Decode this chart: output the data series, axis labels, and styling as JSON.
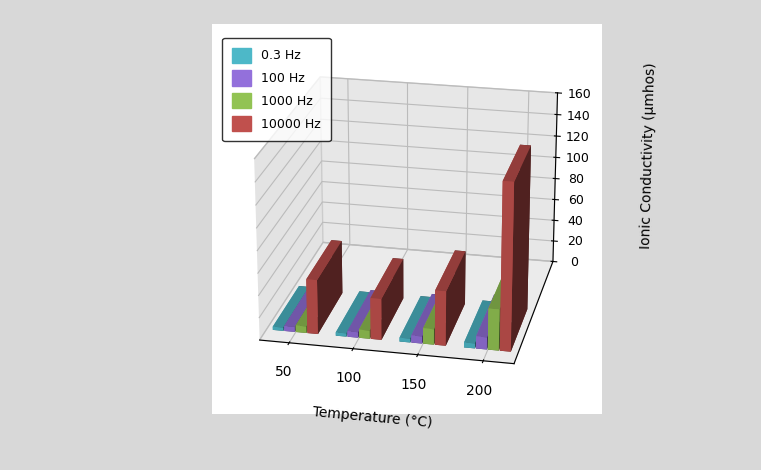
{
  "categories": [
    "50",
    "100",
    "150",
    "200"
  ],
  "series_names": [
    "0.3 Hz",
    "100 Hz",
    "1000 Hz",
    "10000 Hz"
  ],
  "values": [
    [
      3.0,
      3.0,
      3.5,
      4.5
    ],
    [
      4.5,
      5.0,
      6.5,
      11.0
    ],
    [
      6.0,
      7.5,
      14.0,
      37.0
    ],
    [
      49.0,
      37.0,
      49.0,
      149.0
    ]
  ],
  "colors": [
    "#4DB8C8",
    "#9370DB",
    "#92C353",
    "#C0504D"
  ],
  "xlabel": "Temperature (°C)",
  "ylabel": "Ionic Conductivity (μmhos)",
  "ylim": [
    0,
    160
  ],
  "yticks": [
    0,
    20,
    40,
    60,
    80,
    100,
    120,
    140,
    160
  ],
  "background_color": "#D8D8D8",
  "wall_color": "#E0E0E0",
  "floor_color": "#C8C8C8",
  "grid_color": "#BBBBBB",
  "legend_labels": [
    "0.3 Hz",
    "100 Hz",
    "1000 Hz",
    "10000 Hz"
  ]
}
